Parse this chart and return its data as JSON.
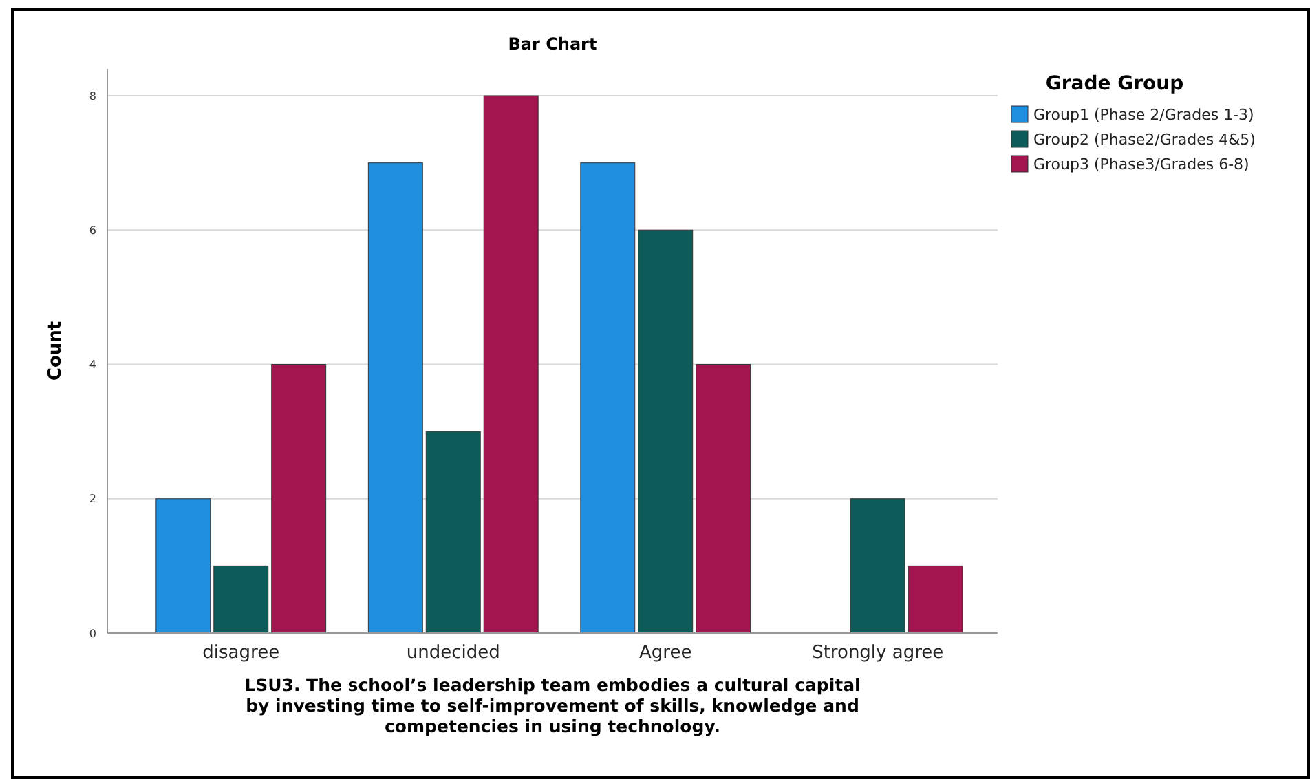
{
  "chart_data": {
    "type": "bar",
    "title": "Bar Chart",
    "xlabel": "LSU3. The school’s leadership team embodies a cultural capital by investing time to self-improvement of skills, knowledge and competencies in using technology.",
    "ylabel": "Count",
    "legend_title": "Grade Group",
    "categories": [
      "disagree",
      "undecided",
      "Agree",
      "Strongly agree"
    ],
    "series": [
      {
        "name": "Group1 (Phase 2/Grades 1-3)",
        "color": "#1f8fe0",
        "values": [
          2,
          7,
          7,
          0
        ]
      },
      {
        "name": "Group2 (Phase2/Grades 4&5)",
        "color": "#0d5c5a",
        "values": [
          1,
          3,
          6,
          2
        ]
      },
      {
        "name": "Group3 (Phase3/Grades 6-8)",
        "color": "#a3154f",
        "values": [
          4,
          8,
          4,
          1
        ]
      }
    ],
    "ylim": [
      0,
      8.4
    ],
    "yticks": [
      0,
      2,
      4,
      6,
      8
    ],
    "grid": "y",
    "legend": "top right"
  }
}
